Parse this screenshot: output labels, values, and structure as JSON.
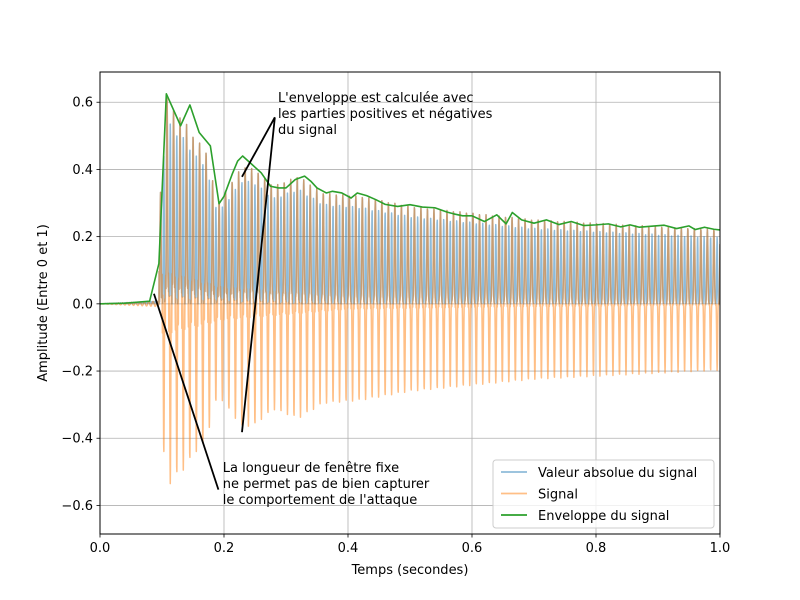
{
  "chart_data": {
    "type": "line",
    "title": "",
    "xlabel": "Temps (secondes)",
    "ylabel": "Amplitude (Entre 0 et 1)",
    "xlim": [
      0.0,
      1.0
    ],
    "ylim": [
      -0.685,
      0.69
    ],
    "grid": true,
    "legend_placement": "lower-right",
    "x_ticks": [
      {
        "value": 0.0,
        "label": "0.0"
      },
      {
        "value": 0.2,
        "label": "0.2"
      },
      {
        "value": 0.4,
        "label": "0.4"
      },
      {
        "value": 0.6,
        "label": "0.6"
      },
      {
        "value": 0.8,
        "label": "0.8"
      },
      {
        "value": 1.0,
        "label": "1.0"
      }
    ],
    "y_ticks": [
      {
        "value": -0.6,
        "label": "−0.6"
      },
      {
        "value": -0.4,
        "label": "−0.4"
      },
      {
        "value": -0.2,
        "label": "−0.2"
      },
      {
        "value": 0.0,
        "label": "0.0"
      },
      {
        "value": 0.2,
        "label": "0.2"
      },
      {
        "value": 0.4,
        "label": "0.4"
      },
      {
        "value": 0.6,
        "label": "0.6"
      }
    ],
    "oscillation": {
      "onset": 0.095,
      "period": 0.0105,
      "neg_ratio": 0.9,
      "peak_env": [
        [
          0.095,
          0.25
        ],
        [
          0.107,
          0.62
        ],
        [
          0.12,
          0.57
        ],
        [
          0.135,
          0.55
        ],
        [
          0.15,
          0.5
        ],
        [
          0.17,
          0.46
        ],
        [
          0.19,
          0.3
        ],
        [
          0.215,
          0.37
        ],
        [
          0.23,
          0.41
        ],
        [
          0.25,
          0.4
        ],
        [
          0.28,
          0.35
        ],
        [
          0.32,
          0.38
        ],
        [
          0.36,
          0.33
        ],
        [
          0.42,
          0.32
        ],
        [
          0.5,
          0.29
        ],
        [
          0.6,
          0.27
        ],
        [
          0.7,
          0.25
        ],
        [
          0.8,
          0.24
        ],
        [
          0.9,
          0.23
        ],
        [
          1.0,
          0.22
        ]
      ],
      "min_env": [
        [
          0.095,
          0.12
        ],
        [
          0.2,
          0.06
        ],
        [
          0.4,
          0.02
        ],
        [
          0.7,
          0.01
        ],
        [
          1.0,
          0.005
        ]
      ]
    },
    "series": [
      {
        "name": "Valeur absolue du signal",
        "color": "#1f77b4",
        "alpha": 0.5,
        "kind": "abs"
      },
      {
        "name": "Signal",
        "color": "#ff7f0e",
        "alpha": 0.5,
        "kind": "signal"
      },
      {
        "name": "Enveloppe du signal",
        "color": "#2ca02c",
        "alpha": 1.0,
        "kind": "envelope",
        "x": [
          0.0,
          0.04,
          0.08,
          0.095,
          0.107,
          0.13,
          0.145,
          0.16,
          0.178,
          0.192,
          0.2,
          0.213,
          0.222,
          0.23,
          0.245,
          0.26,
          0.275,
          0.288,
          0.3,
          0.315,
          0.33,
          0.34,
          0.35,
          0.365,
          0.375,
          0.39,
          0.405,
          0.415,
          0.43,
          0.445,
          0.46,
          0.48,
          0.5,
          0.52,
          0.54,
          0.56,
          0.57,
          0.585,
          0.6,
          0.62,
          0.64,
          0.655,
          0.665,
          0.68,
          0.7,
          0.72,
          0.74,
          0.76,
          0.78,
          0.8,
          0.82,
          0.84,
          0.855,
          0.87,
          0.89,
          0.91,
          0.93,
          0.95,
          0.96,
          0.975,
          0.99,
          1.0
        ],
        "y": [
          0.0,
          0.002,
          0.008,
          0.12,
          0.625,
          0.53,
          0.592,
          0.51,
          0.47,
          0.298,
          0.32,
          0.385,
          0.425,
          0.44,
          0.415,
          0.39,
          0.35,
          0.345,
          0.345,
          0.37,
          0.38,
          0.365,
          0.345,
          0.33,
          0.335,
          0.33,
          0.315,
          0.33,
          0.322,
          0.31,
          0.296,
          0.29,
          0.295,
          0.288,
          0.286,
          0.273,
          0.268,
          0.262,
          0.262,
          0.245,
          0.265,
          0.238,
          0.272,
          0.25,
          0.24,
          0.25,
          0.236,
          0.245,
          0.233,
          0.235,
          0.238,
          0.229,
          0.235,
          0.228,
          0.231,
          0.234,
          0.224,
          0.232,
          0.221,
          0.228,
          0.222,
          0.22
        ]
      }
    ],
    "annotations": [
      {
        "lines": [
          "L'enveloppe est calculée avec",
          "les parties positives et négatives",
          "du signal"
        ],
        "text_anchor": [
          0.287,
          0.6
        ],
        "arrow_from": [
          0.282,
          0.555
        ],
        "arrow_to": [
          [
            0.229,
            0.378
          ],
          [
            0.229,
            -0.382
          ]
        ]
      },
      {
        "lines": [
          "La longueur de fenêtre fixe",
          "ne permet pas de bien capturer",
          "le comportement de l'attaque"
        ],
        "text_anchor": [
          0.198,
          -0.5
        ],
        "arrow_from": [
          0.191,
          -0.553
        ],
        "arrow_to": [
          [
            0.087,
            0.03
          ]
        ]
      }
    ]
  }
}
